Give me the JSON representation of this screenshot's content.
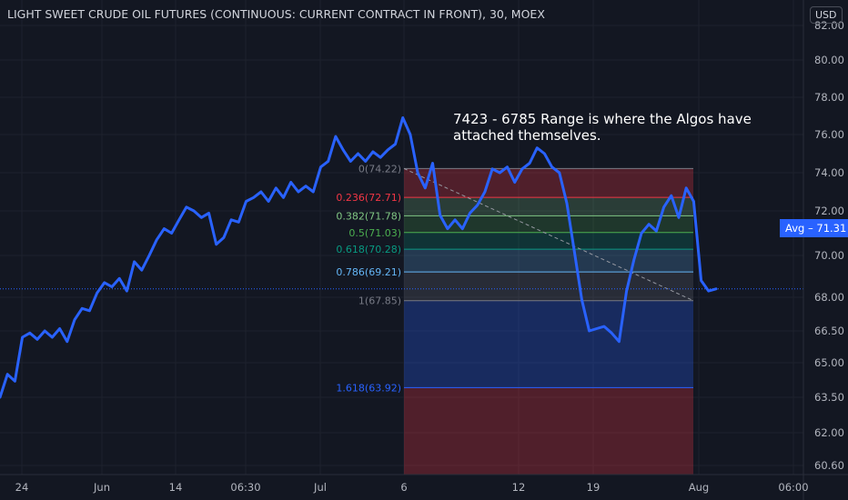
{
  "header": {
    "title": "LIGHT SWEET CRUDE OIL FUTURES (CONTINUOUS: CURRENT CONTRACT IN FRONT), 30, MOEX",
    "currency": "USD"
  },
  "annotation": {
    "text": "7423 - 6785 Range is where the Algos have attached themselves."
  },
  "avg_badge": {
    "label": "Avg",
    "value": "71.31"
  },
  "colors": {
    "background": "#131722",
    "price_line": "#2962ff",
    "grid": "#1e222d",
    "axis_text": "#b2b5be"
  },
  "chart_data": {
    "type": "line",
    "title": "LIGHT SWEET CRUDE OIL FUTURES (CONTINUOUS: CURRENT CONTRACT IN FRONT), 30, MOEX",
    "xlabel": "",
    "ylabel": "",
    "ylim": [
      60.0,
      83.0
    ],
    "grid": true,
    "x_ticks": [
      "24",
      "Jun",
      "14",
      "06:30",
      "Jul",
      "6",
      "12",
      "19",
      "Aug",
      "06:00"
    ],
    "y_ticks": [
      "60.60",
      "62.00",
      "63.50",
      "65.00",
      "66.50",
      "68.00",
      "70.00",
      "72.00",
      "74.00",
      "76.00",
      "78.00",
      "80.00",
      "82.00"
    ],
    "series": [
      {
        "values": [
          63.5,
          64.5,
          64.2,
          66.2,
          66.4,
          66.1,
          66.5,
          66.2,
          66.6,
          66.0,
          67.0,
          67.5,
          67.4,
          68.2,
          68.7,
          68.5,
          68.9,
          68.3,
          69.7,
          69.3,
          70.0,
          70.7,
          71.2,
          71.0,
          71.6,
          72.2,
          72.0,
          71.7,
          71.9,
          70.5,
          70.8,
          71.6,
          71.5,
          72.5,
          72.7,
          73.0,
          72.5,
          73.2,
          72.7,
          73.5,
          73.0,
          73.3,
          73.0,
          74.3,
          74.6,
          75.9,
          75.2,
          74.6,
          75.0,
          74.6,
          75.1,
          74.8,
          75.2,
          75.5,
          76.9,
          76.0,
          74.0,
          73.2,
          74.5,
          71.8,
          71.2,
          71.6,
          71.2,
          71.9,
          72.3,
          73.0,
          74.2,
          74.0,
          74.3,
          73.5,
          74.2,
          74.5,
          75.3,
          75.0,
          74.3,
          74.0,
          72.4,
          70.2,
          67.9,
          66.5,
          66.6,
          66.7,
          66.4,
          66.0,
          68.3,
          69.8,
          71.0,
          71.4,
          71.1,
          72.2,
          72.8,
          71.7,
          73.2,
          72.5,
          68.8,
          68.3,
          68.4
        ],
        "values_note": ""
      }
    ],
    "fibonacci": {
      "levels": [
        {
          "ratio": "0",
          "price": 74.22,
          "label": "0(74.22)",
          "line_color": "#787b86",
          "label_color": "#787b86"
        },
        {
          "ratio": "0.236",
          "price": 72.71,
          "label": "0.236(72.71)",
          "line_color": "#f23645",
          "label_color": "#f23645"
        },
        {
          "ratio": "0.382",
          "price": 71.78,
          "label": "0.382(71.78)",
          "line_color": "#81c784",
          "label_color": "#81c784"
        },
        {
          "ratio": "0.5",
          "price": 71.03,
          "label": "0.5(71.03)",
          "line_color": "#4caf50",
          "label_color": "#4caf50"
        },
        {
          "ratio": "0.618",
          "price": 70.28,
          "label": "0.618(70.28)",
          "line_color": "#089981",
          "label_color": "#089981"
        },
        {
          "ratio": "0.786",
          "price": 69.21,
          "label": "0.786(69.21)",
          "line_color": "#64b5f6",
          "label_color": "#64b5f6"
        },
        {
          "ratio": "1",
          "price": 67.85,
          "label": "1(67.85)",
          "line_color": "#787b86",
          "label_color": "#787b86"
        },
        {
          "ratio": "1.618",
          "price": 63.92,
          "label": "1.618(63.92)",
          "line_color": "#2962ff",
          "label_color": "#2962ff"
        }
      ],
      "bands": [
        {
          "color": "rgba(242,54,69,0.28)"
        },
        {
          "color": "rgba(129,199,132,0.22)"
        },
        {
          "color": "rgba(76,175,80,0.22)"
        },
        {
          "color": "rgba(8,153,129,0.22)"
        },
        {
          "color": "rgba(100,181,246,0.22)"
        },
        {
          "color": "rgba(120,123,134,0.22)"
        },
        {
          "color": "rgba(41,98,255,0.28)"
        },
        {
          "color": "rgba(242,54,69,0.28)"
        }
      ]
    }
  }
}
